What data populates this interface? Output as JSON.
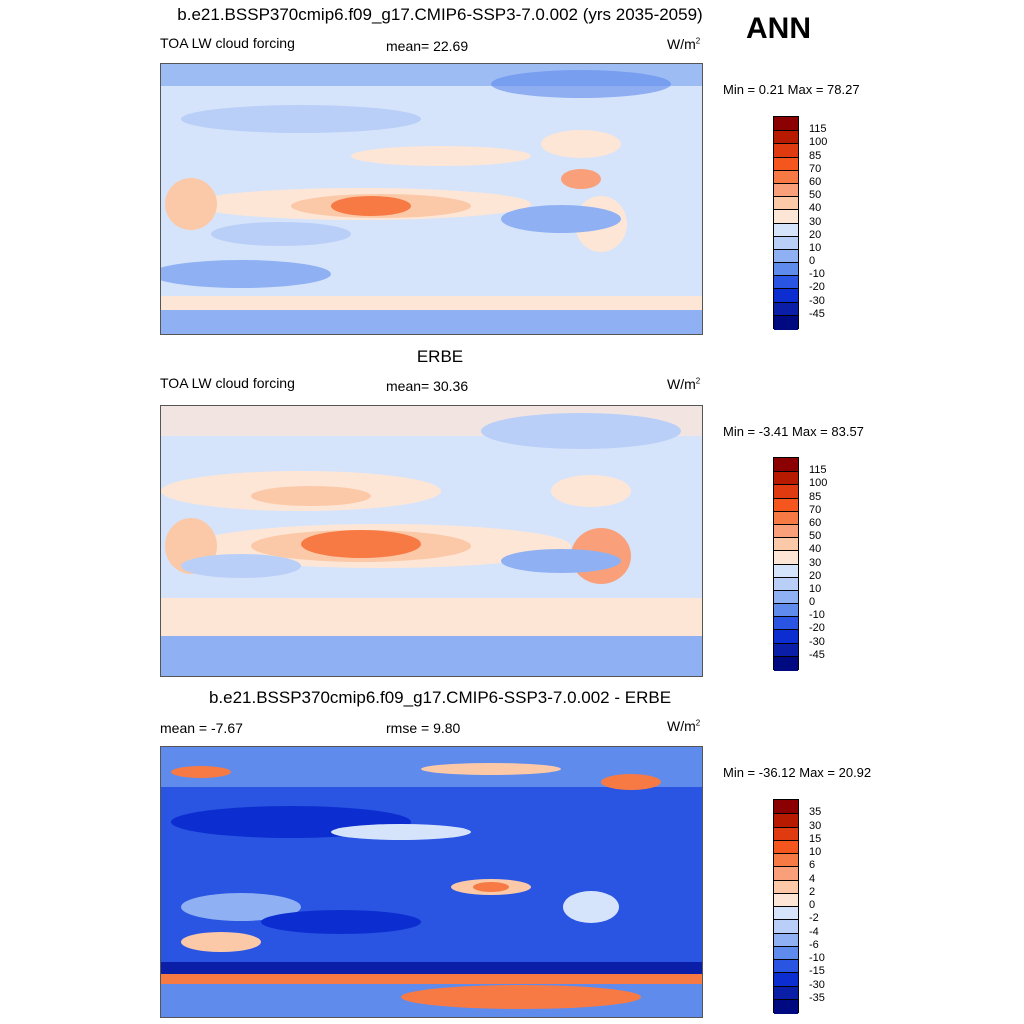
{
  "header": {
    "title": "b.e21.BSSP370cmip6.f09_g17.CMIP6-SSP3-7.0.002 (yrs 2035-2059)",
    "season": "ANN"
  },
  "panels": [
    {
      "id": "model",
      "title": "",
      "left_label": "TOA LW cloud forcing",
      "center_label": "mean=  22.69",
      "units": "W/m",
      "units_sup": "2",
      "minmax": "Min =   0.21 Max =  78.27"
    },
    {
      "id": "obs",
      "title": "ERBE",
      "left_label": "TOA LW cloud forcing",
      "center_label": "mean=  30.36",
      "units": "W/m",
      "units_sup": "2",
      "minmax": "Min =  -3.41 Max =  83.57"
    },
    {
      "id": "diff",
      "title": "b.e21.BSSP370cmip6.f09_g17.CMIP6-SSP3-7.0.002 - ERBE",
      "left_label": "mean =  -7.67",
      "center_label": "rmse =   9.80",
      "units": "W/m",
      "units_sup": "2",
      "minmax": "Min = -36.12 Max =  20.92"
    }
  ],
  "colorbars": {
    "field": {
      "labels": [
        "115",
        "100",
        "85",
        "70",
        "60",
        "50",
        "40",
        "30",
        "20",
        "10",
        "0",
        "-10",
        "-20",
        "-30",
        "-45"
      ],
      "colors": [
        "#8b0000",
        "#b81a00",
        "#e03a10",
        "#f5561e",
        "#f77a45",
        "#f9a07a",
        "#fbc9a8",
        "#fde6d6",
        "#d6e4fb",
        "#b9cff8",
        "#8fb1f3",
        "#5f8bec",
        "#2a55e3",
        "#0c2ed0",
        "#0a1ea8",
        "#000a80"
      ]
    },
    "diff": {
      "labels": [
        "35",
        "30",
        "15",
        "10",
        "6",
        "4",
        "2",
        "0",
        "-2",
        "-4",
        "-6",
        "-10",
        "-15",
        "-30",
        "-35"
      ],
      "colors": [
        "#8b0000",
        "#b81a00",
        "#e03a10",
        "#f5561e",
        "#f77a45",
        "#f9a07a",
        "#fbc9a8",
        "#fde6d6",
        "#d6e4fb",
        "#b9cff8",
        "#8fb1f3",
        "#5f8bec",
        "#2a55e3",
        "#0c2ed0",
        "#0a1ea8",
        "#000a80"
      ]
    }
  },
  "chart_data": [
    {
      "type": "heatmap",
      "title": "b.e21.BSSP370cmip6.f09_g17.CMIP6-SSP3-7.0.002 (yrs 2035-2059)",
      "variable": "TOA LW cloud forcing",
      "mean": 22.69,
      "min": 0.21,
      "max": 78.27,
      "units": "W/m2",
      "levels": [
        -45,
        -30,
        -20,
        -10,
        0,
        10,
        20,
        30,
        40,
        50,
        60,
        70,
        85,
        100,
        115
      ]
    },
    {
      "type": "heatmap",
      "title": "ERBE",
      "variable": "TOA LW cloud forcing",
      "mean": 30.36,
      "min": -3.41,
      "max": 83.57,
      "units": "W/m2",
      "levels": [
        -45,
        -30,
        -20,
        -10,
        0,
        10,
        20,
        30,
        40,
        50,
        60,
        70,
        85,
        100,
        115
      ]
    },
    {
      "type": "heatmap",
      "title": "b.e21.BSSP370cmip6.f09_g17.CMIP6-SSP3-7.0.002 - ERBE",
      "mean": -7.67,
      "rmse": 9.8,
      "min": -36.12,
      "max": 20.92,
      "units": "W/m2",
      "levels": [
        -35,
        -30,
        -15,
        -10,
        -6,
        -4,
        -2,
        0,
        2,
        4,
        6,
        10,
        15,
        30,
        35
      ]
    }
  ]
}
